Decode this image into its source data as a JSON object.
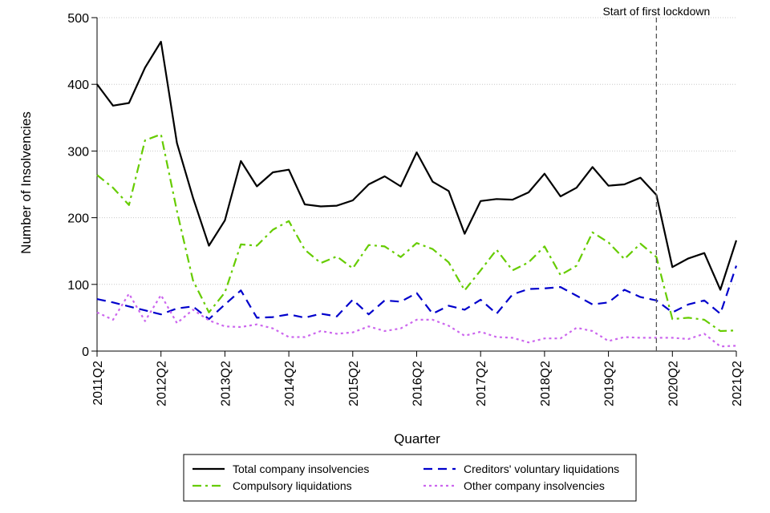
{
  "chart_data": {
    "type": "line",
    "title": "",
    "xlabel": "Quarter",
    "ylabel": "Number of Insolvencies",
    "ylim": [
      0,
      500
    ],
    "yticks": [
      "0",
      "100",
      "200",
      "300",
      "400",
      "500"
    ],
    "xtick_labels": [
      "2011Q2",
      "2012Q2",
      "2013Q2",
      "2014Q2",
      "2015Q2",
      "2016Q2",
      "2017Q2",
      "2018Q2",
      "2019Q2",
      "2020Q2",
      "2021Q2"
    ],
    "categories": [
      "2011Q2",
      "2011Q3",
      "2011Q4",
      "2012Q1",
      "2012Q2",
      "2012Q3",
      "2012Q4",
      "2013Q1",
      "2013Q2",
      "2013Q3",
      "2013Q4",
      "2014Q1",
      "2014Q2",
      "2014Q3",
      "2014Q4",
      "2015Q1",
      "2015Q2",
      "2015Q3",
      "2015Q4",
      "2016Q1",
      "2016Q2",
      "2016Q3",
      "2016Q4",
      "2017Q1",
      "2017Q2",
      "2017Q3",
      "2017Q4",
      "2018Q1",
      "2018Q2",
      "2018Q3",
      "2018Q4",
      "2019Q1",
      "2019Q2",
      "2019Q3",
      "2019Q4",
      "2020Q1",
      "2020Q2",
      "2020Q3",
      "2020Q4",
      "2021Q1",
      "2021Q2"
    ],
    "series": [
      {
        "name": "Total company insolvencies",
        "color": "#000000",
        "dash": "solid",
        "values": [
          400,
          368,
          372,
          425,
          464,
          312,
          230,
          158,
          196,
          285,
          247,
          268,
          272,
          220,
          217,
          218,
          226,
          250,
          262,
          247,
          298,
          254,
          240,
          176,
          225,
          228,
          227,
          238,
          266,
          232,
          245,
          276,
          248,
          250,
          260,
          234,
          126,
          139,
          147,
          92,
          166
        ]
      },
      {
        "name": "Creditors' voluntary liquidations",
        "color": "#0000cc",
        "dash": "dashed",
        "values": [
          78,
          73,
          67,
          61,
          55,
          64,
          67,
          48,
          70,
          91,
          50,
          51,
          55,
          50,
          56,
          52,
          77,
          55,
          76,
          74,
          87,
          56,
          68,
          62,
          77,
          56,
          85,
          93,
          94,
          96,
          83,
          70,
          73,
          92,
          81,
          76,
          58,
          70,
          76,
          56,
          128
        ]
      },
      {
        "name": "Compulsory liquidations",
        "color": "#66cc00",
        "dash": "dashdot",
        "values": [
          264,
          245,
          219,
          316,
          325,
          210,
          106,
          58,
          88,
          160,
          158,
          182,
          195,
          152,
          132,
          142,
          124,
          159,
          157,
          141,
          162,
          153,
          133,
          91,
          121,
          152,
          121,
          133,
          157,
          114,
          128,
          178,
          163,
          138,
          161,
          141,
          48,
          50,
          47,
          30,
          31
        ]
      },
      {
        "name": "Other company insolvencies",
        "color": "#cc66ee",
        "dash": "dotted",
        "values": [
          58,
          47,
          86,
          45,
          84,
          42,
          62,
          46,
          37,
          36,
          40,
          34,
          21,
          21,
          30,
          26,
          28,
          37,
          30,
          34,
          47,
          47,
          38,
          23,
          29,
          21,
          20,
          13,
          19,
          19,
          35,
          30,
          15,
          21,
          20,
          20,
          20,
          18,
          26,
          7,
          8
        ]
      }
    ],
    "annotations": [
      {
        "text": "Start of first lockdown",
        "at_category": "2020Q1"
      }
    ],
    "grid": "horizontal-dotted",
    "legend_position": "bottom"
  }
}
